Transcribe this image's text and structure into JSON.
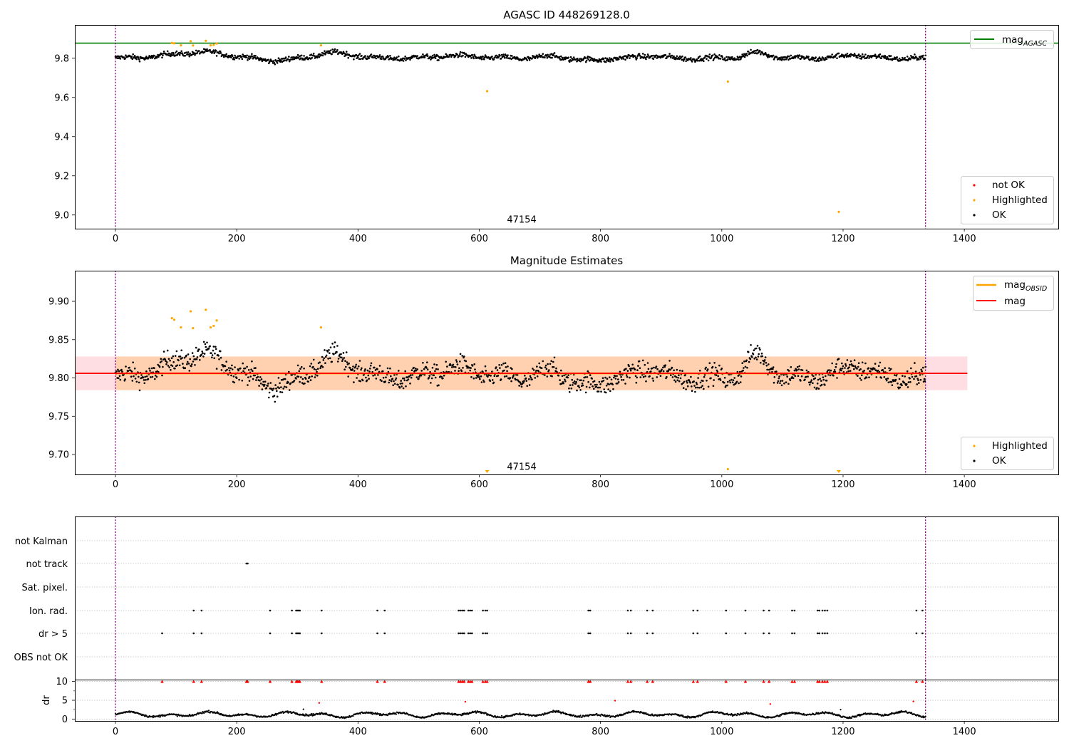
{
  "chart_data": [
    {
      "type": "scatter",
      "title": "AGASC ID 448269128.0",
      "xlim": [
        -67,
        1555
      ],
      "ylim": [
        8.93,
        9.97
      ],
      "xticks": [
        0,
        200,
        400,
        600,
        800,
        1000,
        1200,
        1400
      ],
      "yticks": [
        9.0,
        9.2,
        9.4,
        9.6,
        9.8
      ],
      "ytick_labels": [
        "9.0",
        "9.2",
        "9.4",
        "9.6",
        "9.8"
      ],
      "reference_lines": [
        {
          "name": "mag_AGASC",
          "label": "mag",
          "label_sub": "AGASC",
          "y": 9.877,
          "color": "#008000"
        }
      ],
      "obs_boundaries": [
        0,
        1336
      ],
      "obs_label": {
        "text": "47154",
        "x": 670,
        "y": 8.98
      },
      "series": [
        {
          "name": "not OK",
          "color": "#ff0000",
          "points": []
        },
        {
          "name": "Highlighted",
          "color": "#ffa500",
          "points": [
            [
              93,
              9.878
            ],
            [
              97,
              9.876
            ],
            [
              108,
              9.866
            ],
            [
              124,
              9.887
            ],
            [
              128,
              9.865
            ],
            [
              149,
              9.889
            ],
            [
              157,
              9.866
            ],
            [
              162,
              9.868
            ],
            [
              167,
              9.875
            ],
            [
              339,
              9.866
            ],
            [
              613,
              9.632
            ],
            [
              1010,
              9.681
            ],
            [
              1193,
              9.016
            ]
          ]
        },
        {
          "name": "OK",
          "color": "#000000",
          "generated": "dense daily measurements along a wavy band near 9.80 (range ~9.75–9.86) from x=0 to x=1336"
        }
      ],
      "legends": [
        {
          "position": "upper right",
          "entries": [
            "mag_AGASC"
          ]
        },
        {
          "position": "lower right",
          "entries": [
            "not OK",
            "Highlighted",
            "OK"
          ]
        }
      ]
    },
    {
      "type": "scatter",
      "title": "Magnitude Estimates",
      "xlim": [
        -67,
        1555
      ],
      "ylim": [
        9.674,
        9.94
      ],
      "xticks": [
        0,
        200,
        400,
        600,
        800,
        1000,
        1200,
        1400
      ],
      "yticks": [
        9.7,
        9.75,
        9.8,
        9.85,
        9.9
      ],
      "ytick_labels": [
        "9.70",
        "9.75",
        "9.80",
        "9.85",
        "9.90"
      ],
      "reference_lines": [
        {
          "name": "mag",
          "label": "mag",
          "y": 9.806,
          "color": "#ff0000",
          "band": [
            9.784,
            9.828
          ],
          "band_x": [
            -67,
            1405
          ]
        },
        {
          "name": "mag_OBSID",
          "label": "mag",
          "label_sub": "OBSID",
          "y": 9.806,
          "color": "#ffa500",
          "band": [
            9.784,
            9.828
          ],
          "band_x": [
            0,
            1336
          ]
        }
      ],
      "obs_boundaries": [
        0,
        1336
      ],
      "obs_label": {
        "text": "47154",
        "x": 670,
        "y": 9.678
      },
      "series": [
        {
          "name": "Highlighted",
          "color": "#ffa500",
          "points": [
            [
              93,
              9.878
            ],
            [
              97,
              9.876
            ],
            [
              108,
              9.866
            ],
            [
              124,
              9.887
            ],
            [
              128,
              9.865
            ],
            [
              149,
              9.889
            ],
            [
              157,
              9.866
            ],
            [
              162,
              9.868
            ],
            [
              167,
              9.875
            ],
            [
              339,
              9.866
            ],
            [
              1010,
              9.681
            ]
          ],
          "offscale_below": [
            613,
            1193
          ]
        },
        {
          "name": "OK",
          "color": "#000000",
          "generated": "same measurements as top panel, spanning ~9.75–9.86"
        }
      ],
      "legends": [
        {
          "position": "upper right",
          "entries": [
            "mag_OBSID",
            "mag"
          ]
        },
        {
          "position": "lower right",
          "entries": [
            "Highlighted",
            "OK"
          ]
        }
      ]
    },
    {
      "type": "scatter",
      "title": "",
      "xlim": [
        -67,
        1555
      ],
      "xticks": [
        0,
        200,
        400,
        600,
        800,
        1000,
        1200,
        1400
      ],
      "flag_rows": [
        "not Kalman",
        "not track",
        "Sat. pixel.",
        "Ion. rad.",
        "dr > 5",
        "OBS not OK"
      ],
      "flags": {
        "not Kalman": [],
        "not track": [
          216,
          218
        ],
        "Sat. pixel.": [],
        "Ion. rad.": [
          129,
          142,
          255,
          291,
          298,
          300,
          302,
          304,
          340,
          432,
          444,
          566,
          569,
          572,
          575,
          582,
          585,
          588,
          606,
          610,
          613,
          780,
          783,
          845,
          850,
          877,
          886,
          953,
          960,
          1007,
          1039,
          1069,
          1078,
          1116,
          1120,
          1158,
          1161,
          1166,
          1170,
          1174,
          1321,
          1331
        ],
        "dr > 5": [
          77,
          129,
          142,
          255,
          291,
          298,
          300,
          302,
          304,
          340,
          432,
          444,
          566,
          569,
          572,
          575,
          582,
          585,
          588,
          606,
          610,
          613,
          780,
          783,
          845,
          850,
          877,
          886,
          953,
          960,
          1007,
          1039,
          1069,
          1078,
          1116,
          1120,
          1158,
          1161,
          1166,
          1170,
          1174,
          1321,
          1331
        ],
        "OBS not OK": []
      },
      "dr_panel": {
        "ylabel": "dr",
        "ylim": [
          -0.5,
          10.5
        ],
        "yticks": [
          0,
          5,
          10
        ],
        "ytick_labels": [
          "0",
          "5",
          "10"
        ],
        "clipped_color": "#ff0000",
        "clipped_x": [
          77,
          129,
          142,
          216,
          218,
          255,
          291,
          298,
          300,
          302,
          304,
          340,
          432,
          444,
          566,
          569,
          572,
          575,
          582,
          585,
          588,
          606,
          610,
          613,
          780,
          783,
          845,
          850,
          877,
          886,
          953,
          960,
          1007,
          1039,
          1069,
          1078,
          1116,
          1120,
          1158,
          1161,
          1166,
          1170,
          1174,
          1321,
          1331
        ],
        "mid_red_points": [
          [
            336,
            4.3
          ],
          [
            577,
            4.6
          ],
          [
            824,
            4.9
          ],
          [
            1080,
            4.0
          ],
          [
            1316,
            4.7
          ]
        ],
        "mid_black_points": [
          [
            310,
            2.6
          ],
          [
            1196,
            2.5
          ]
        ],
        "generated": "dr values mostly 0.3–2.5, wavy"
      }
    }
  ]
}
